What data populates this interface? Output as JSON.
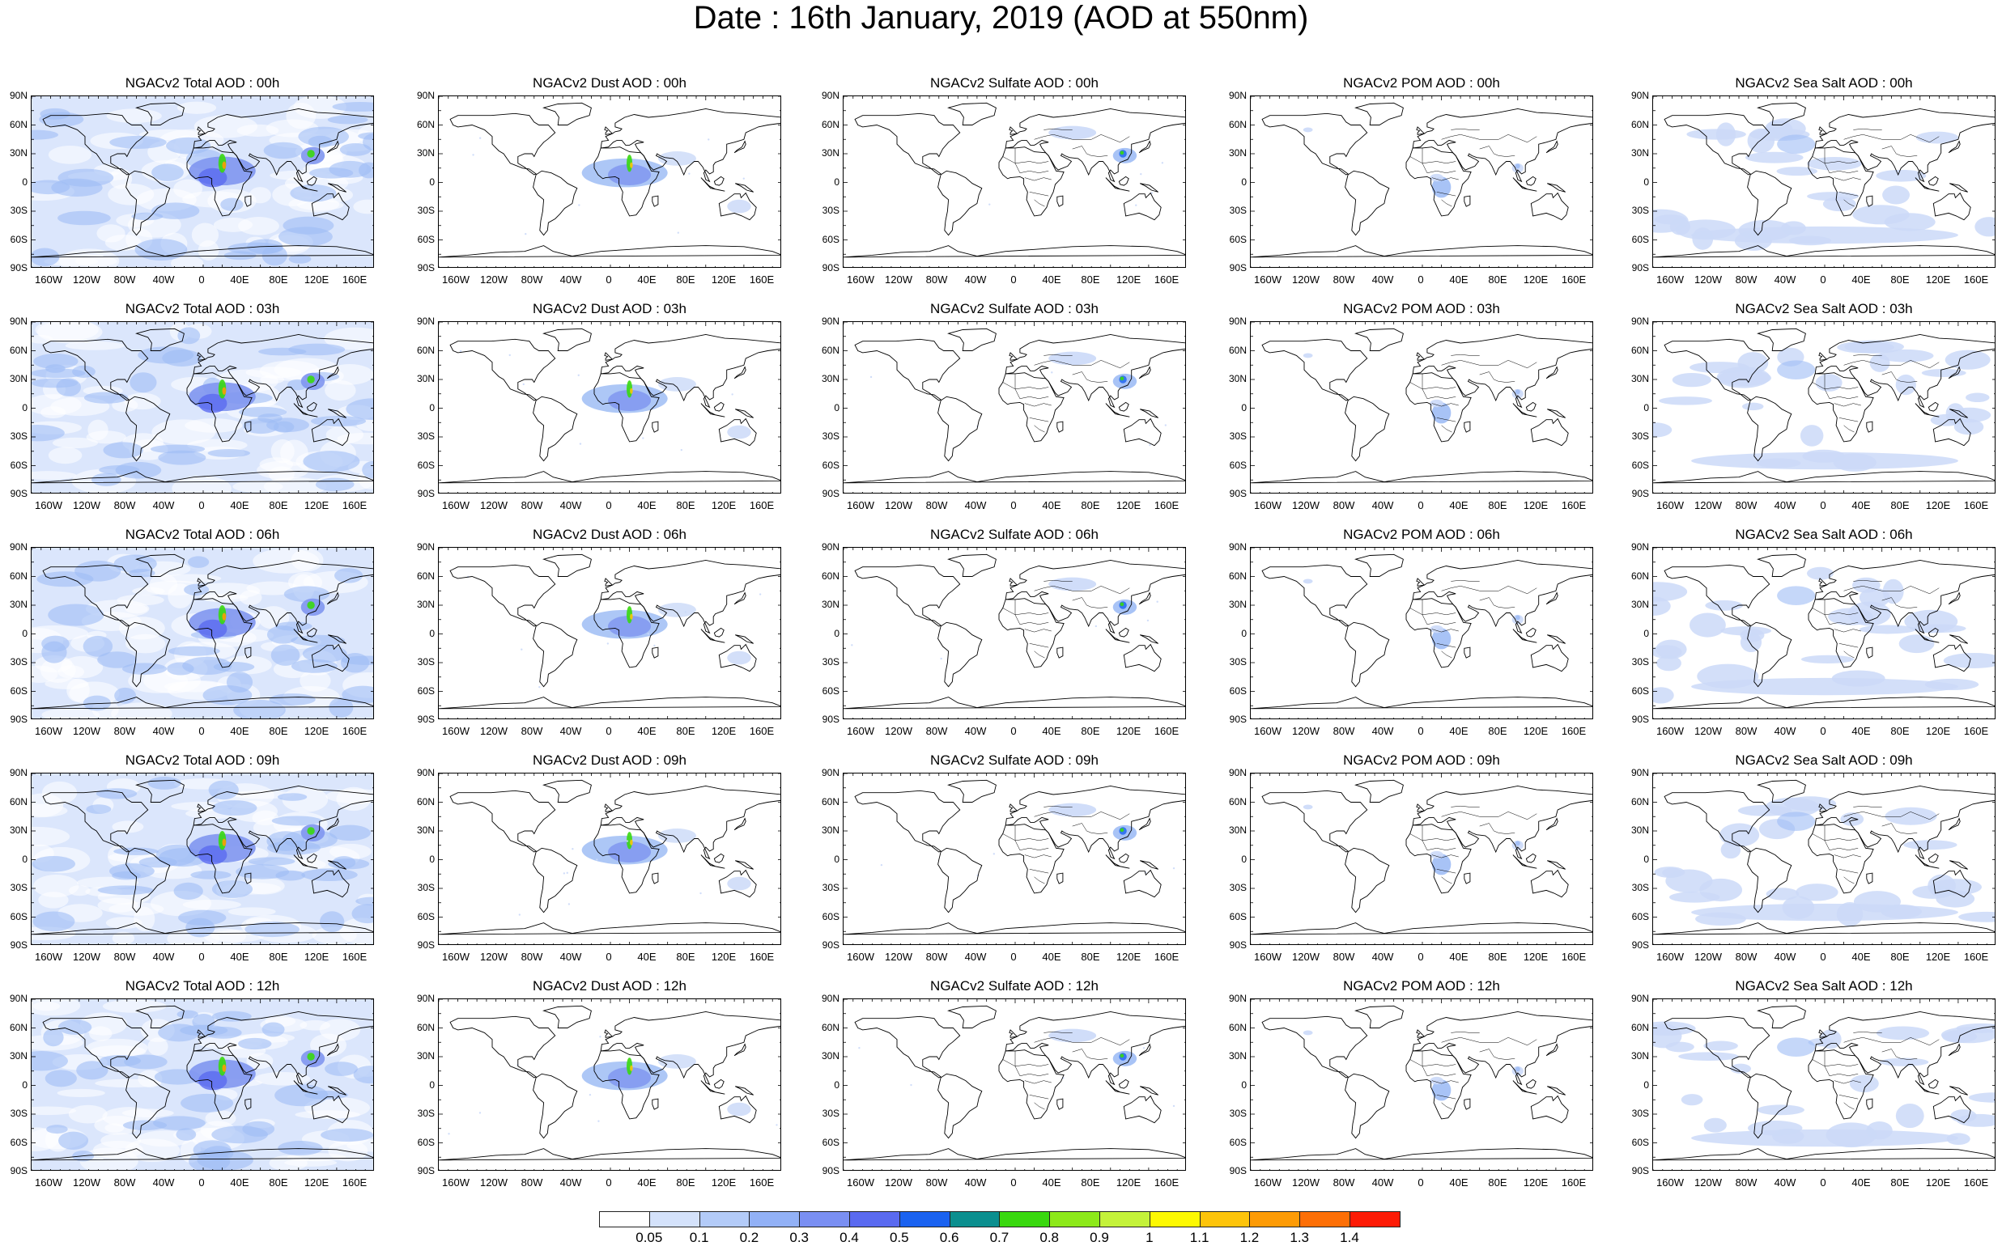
{
  "title": "Date : 16th January, 2019 (AOD at 550nm)",
  "lat_ticks": [
    "90N",
    "60N",
    "30N",
    "0",
    "30S",
    "60S",
    "90S"
  ],
  "lon_ticks": [
    "160W",
    "120W",
    "80W",
    "40W",
    "0",
    "40E",
    "80E",
    "120E",
    "160E"
  ],
  "species": [
    {
      "key": "total",
      "tint": "medium"
    },
    {
      "key": "dust",
      "tint": "dust"
    },
    {
      "key": "sulfate",
      "tint": "sulfate"
    },
    {
      "key": "pom",
      "tint": "pom"
    },
    {
      "key": "seasalt",
      "tint": "seasalt"
    }
  ],
  "panels": [
    [
      "NGACv2 Total AOD : 00h",
      "NGACv2 Dust AOD : 00h",
      "NGACv2 Sulfate AOD : 00h",
      "NGACv2 POM AOD : 00h",
      "NGACv2 Sea Salt AOD : 00h"
    ],
    [
      "NGACv2 Total AOD : 03h",
      "NGACv2 Dust AOD : 03h",
      "NGACv2 Sulfate AOD : 03h",
      "NGACv2 POM AOD : 03h",
      "NGACv2 Sea Salt AOD : 03h"
    ],
    [
      "NGACv2 Total AOD : 06h",
      "NGACv2 Dust AOD : 06h",
      "NGACv2 Sulfate AOD : 06h",
      "NGACv2 POM AOD : 06h",
      "NGACv2 Sea Salt AOD : 06h"
    ],
    [
      "NGACv2 Total AOD : 09h",
      "NGACv2 Dust AOD : 09h",
      "NGACv2 Sulfate AOD : 09h",
      "NGACv2 POM AOD : 09h",
      "NGACv2 Sea Salt  AOD : 09h"
    ],
    [
      "NGACv2 Total AOD  : 12h",
      "NGACv2 Dust AOD : 12h",
      "NGACv2 Sulfate AOD : 12h",
      "NGACv2 POM  AOD : 12h",
      "NGACv2 Sea Salt  AOD : 12h"
    ]
  ],
  "colorbar": {
    "labels": [
      "0.05",
      "0.1",
      "0.2",
      "0.3",
      "0.4",
      "0.5",
      "0.6",
      "0.7",
      "0.8",
      "0.9",
      "1",
      "1.1",
      "1.2",
      "1.3",
      "1.4"
    ],
    "colors": [
      "#ffffff",
      "#d4e2fb",
      "#b3cbf8",
      "#92b1f6",
      "#7a8ff2",
      "#5a6af0",
      "#1a62f0",
      "#0b8f8f",
      "#39d80f",
      "#8de91a",
      "#c4f23a",
      "#fdf902",
      "#fdc40b",
      "#fd9b06",
      "#fd6f06",
      "#fd1b06"
    ]
  }
}
